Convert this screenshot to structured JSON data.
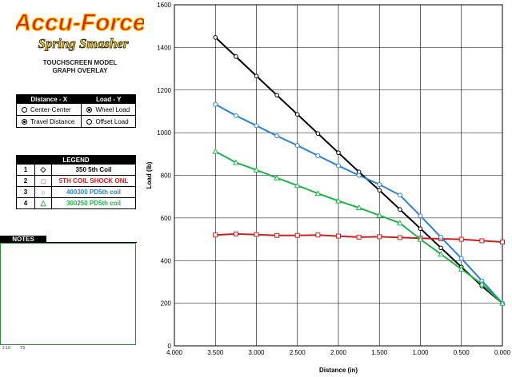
{
  "header": {
    "brand_line1": "Accu-Force",
    "brand_line2": "Spring Smasher",
    "model_line1": "TOUCHSCREEN MODEL",
    "model_line2": "GRAPH OVERLAY"
  },
  "options": {
    "x_header": "Distance - X",
    "y_header": "Load - Y",
    "x_options": [
      {
        "label": "Center-Center",
        "selected": false
      },
      {
        "label": "Travel Distance",
        "selected": true
      }
    ],
    "y_options": [
      {
        "label": "Wheel Load",
        "selected": true
      },
      {
        "label": "Offset Load",
        "selected": false
      }
    ]
  },
  "legend": {
    "title": "LEGEND",
    "items": [
      {
        "num": "1",
        "symbol": "◇",
        "name": "350 5th Coil",
        "color": "#000000"
      },
      {
        "num": "2",
        "symbol": "□",
        "name": "5TH  COIL SHOCK ONL",
        "color": "#cc1f1f"
      },
      {
        "num": "3",
        "symbol": "○",
        "name": "400300 PD5th coil",
        "color": "#2b7fd1"
      },
      {
        "num": "4",
        "symbol": "△",
        "name": "300250 PD5th coil",
        "color": "#22b04a"
      }
    ]
  },
  "notes": {
    "title": "NOTES",
    "footer_left": "2.10",
    "footer_right": "TS"
  },
  "chart_data": {
    "type": "line",
    "xlabel": "Distance (in)",
    "ylabel": "Load (lb)",
    "xlim": [
      4.0,
      0.0
    ],
    "ylim": [
      0,
      1600
    ],
    "x_reversed": true,
    "grid": true,
    "x_ticks": [
      "4.000",
      "3.500",
      "3.000",
      "2.500",
      "2.000",
      "1.500",
      "1.000",
      "0.500",
      "0.000"
    ],
    "y_ticks": [
      "0",
      "200",
      "400",
      "600",
      "800",
      "1000",
      "1200",
      "1400",
      "1600"
    ],
    "x_tick_values": [
      4.0,
      3.5,
      3.0,
      2.5,
      2.0,
      1.5,
      1.0,
      0.5,
      0.0
    ],
    "y_tick_values": [
      0,
      200,
      400,
      600,
      800,
      1000,
      1200,
      1400,
      1600
    ],
    "series": [
      {
        "name": "350 5th Coil",
        "color": "#000000",
        "marker": "diamond",
        "x": [
          3.5,
          3.25,
          3.0,
          2.75,
          2.5,
          2.25,
          2.0,
          1.75,
          1.5,
          1.25,
          1.0,
          0.75,
          0.5,
          0.25,
          0.0
        ],
        "y": [
          1447,
          1357,
          1266,
          1176,
          1086,
          996,
          906,
          816,
          730,
          640,
          550,
          460,
          370,
          280,
          200
        ]
      },
      {
        "name": "5TH  COIL SHOCK ONL",
        "color": "#cc1f1f",
        "marker": "square",
        "x": [
          3.5,
          3.25,
          3.0,
          2.75,
          2.5,
          2.25,
          2.0,
          1.75,
          1.5,
          1.25,
          1.0,
          0.75,
          0.5,
          0.25,
          0.0
        ],
        "y": [
          520,
          525,
          522,
          518,
          518,
          520,
          515,
          510,
          512,
          508,
          505,
          502,
          500,
          493,
          487
        ]
      },
      {
        "name": "400300 PD5th coil",
        "color": "#2b7fd1",
        "marker": "circle",
        "x": [
          3.5,
          3.25,
          3.0,
          2.75,
          2.5,
          2.25,
          2.0,
          1.75,
          1.5,
          1.25,
          1.0,
          0.75,
          0.5,
          0.25,
          0.0
        ],
        "y": [
          1133,
          1080,
          1033,
          985,
          940,
          892,
          845,
          800,
          757,
          707,
          610,
          510,
          410,
          305,
          200
        ]
      },
      {
        "name": "300250 PD5th coil",
        "color": "#22b04a",
        "marker": "triangle",
        "x": [
          3.5,
          3.25,
          3.0,
          2.75,
          2.5,
          2.25,
          2.0,
          1.75,
          1.5,
          1.25,
          1.0,
          0.75,
          0.5,
          0.25,
          0.0
        ],
        "y": [
          912,
          860,
          825,
          788,
          752,
          715,
          680,
          648,
          612,
          576,
          500,
          430,
          360,
          290,
          200
        ]
      }
    ]
  }
}
